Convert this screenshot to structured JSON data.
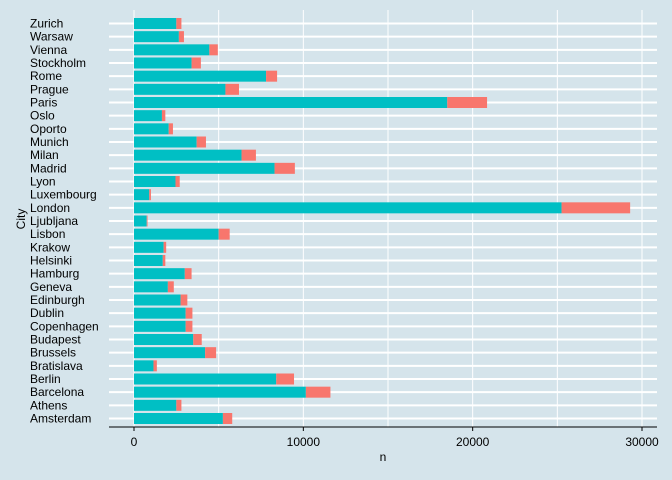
{
  "chart_data": {
    "type": "bar",
    "orientation": "horizontal",
    "stacked": true,
    "xlabel": "n",
    "ylabel": "City",
    "xlim": [
      0,
      30000
    ],
    "xticks": [
      0,
      10000,
      20000,
      30000
    ],
    "xtick_labels": [
      "0",
      "10000",
      "20000",
      "30000"
    ],
    "grid": true,
    "legend": "none",
    "colors": {
      "background": "#d5e4eb",
      "gridline": "#ffffff",
      "series_1": "#00bfc4",
      "series_2": "#f8766d"
    },
    "categories": [
      "Amsterdam",
      "Athens",
      "Barcelona",
      "Berlin",
      "Bratislava",
      "Brussels",
      "Budapest",
      "Copenhagen",
      "Dublin",
      "Edinburgh",
      "Geneva",
      "Hamburg",
      "Helsinki",
      "Krakow",
      "Lisbon",
      "Ljubljana",
      "London",
      "Luxembourg",
      "Lyon",
      "Madrid",
      "Milan",
      "Munich",
      "Oporto",
      "Oslo",
      "Paris",
      "Prague",
      "Rome",
      "Stockholm",
      "Vienna",
      "Warsaw",
      "Zurich"
    ],
    "series": [
      {
        "values": [
          5250,
          2500,
          10150,
          8400,
          1150,
          4200,
          3500,
          3050,
          3050,
          2750,
          2000,
          3000,
          1700,
          1750,
          5000,
          750,
          25250,
          900,
          2450,
          8300,
          6350,
          3700,
          2050,
          1650,
          18500,
          5400,
          7800,
          3400,
          4450,
          2650,
          2500
        ]
      },
      {
        "values": [
          550,
          300,
          1450,
          1050,
          200,
          650,
          500,
          400,
          400,
          400,
          350,
          400,
          150,
          150,
          650,
          50,
          4050,
          100,
          250,
          1200,
          850,
          550,
          250,
          200,
          2350,
          800,
          650,
          550,
          500,
          300,
          300
        ]
      }
    ]
  }
}
